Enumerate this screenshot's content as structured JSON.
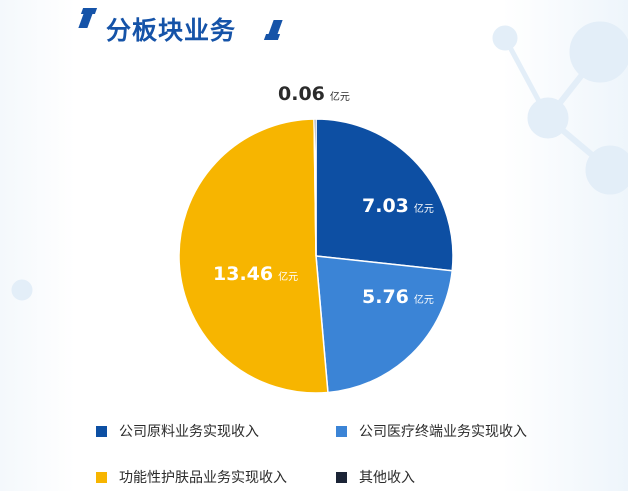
{
  "title": "分板块业务",
  "chart_data": {
    "type": "pie",
    "unit": "亿元",
    "slices": [
      {
        "name": "公司原料业务实现收入",
        "value": 7.03,
        "label": "7.03",
        "color": "#0d4fa3"
      },
      {
        "name": "公司医疗终端业务实现收入",
        "value": 5.76,
        "label": "5.76",
        "color": "#3b84d6"
      },
      {
        "name": "功能性护肤品业务实现收入",
        "value": 13.46,
        "label": "13.46",
        "color": "#f7b500"
      },
      {
        "name": "其他收入",
        "value": 0.06,
        "label": "0.06",
        "color": "#1b2436"
      }
    ]
  }
}
